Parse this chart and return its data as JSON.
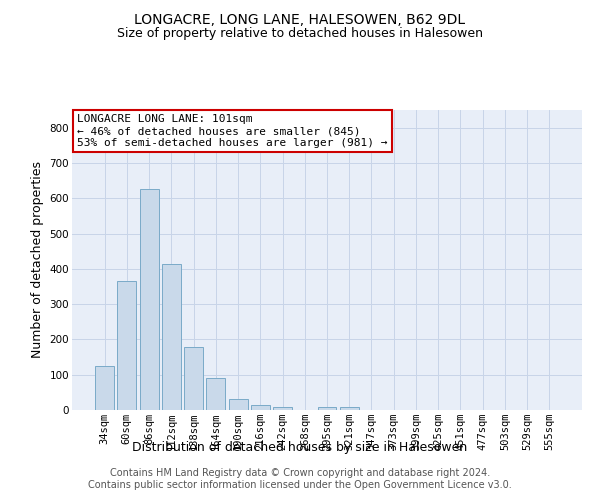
{
  "title": "LONGACRE, LONG LANE, HALESOWEN, B62 9DL",
  "subtitle": "Size of property relative to detached houses in Halesowen",
  "xlabel": "Distribution of detached houses by size in Halesowen",
  "ylabel": "Number of detached properties",
  "categories": [
    "34sqm",
    "60sqm",
    "86sqm",
    "112sqm",
    "138sqm",
    "164sqm",
    "190sqm",
    "216sqm",
    "242sqm",
    "268sqm",
    "295sqm",
    "321sqm",
    "347sqm",
    "373sqm",
    "399sqm",
    "425sqm",
    "451sqm",
    "477sqm",
    "503sqm",
    "529sqm",
    "555sqm"
  ],
  "values": [
    125,
    365,
    625,
    415,
    178,
    90,
    32,
    13,
    8,
    0,
    8,
    8,
    0,
    0,
    0,
    0,
    0,
    0,
    0,
    0,
    0
  ],
  "bar_color": "#c9d9ea",
  "bar_edge_color": "#7aaac8",
  "ylim": [
    0,
    850
  ],
  "yticks": [
    0,
    100,
    200,
    300,
    400,
    500,
    600,
    700,
    800
  ],
  "annotation_box_text": "LONGACRE LONG LANE: 101sqm\n← 46% of detached houses are smaller (845)\n53% of semi-detached houses are larger (981) →",
  "annotation_box_color": "#ffffff",
  "annotation_box_edge_color": "#cc0000",
  "grid_color": "#c8d4e8",
  "bg_color": "#e8eef8",
  "footer_text": "Contains HM Land Registry data © Crown copyright and database right 2024.\nContains public sector information licensed under the Open Government Licence v3.0.",
  "title_fontsize": 10,
  "subtitle_fontsize": 9,
  "xlabel_fontsize": 9,
  "ylabel_fontsize": 9,
  "tick_fontsize": 7.5,
  "annotation_fontsize": 8,
  "footer_fontsize": 7
}
